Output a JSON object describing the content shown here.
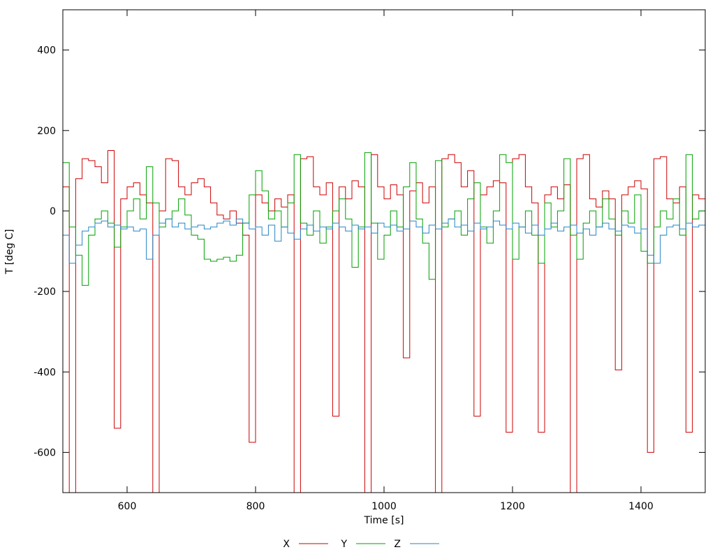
{
  "figure": {
    "background": "#ffffff"
  },
  "chart_data": {
    "type": "line",
    "interpolation": "step-after",
    "title": "",
    "xlabel": "Time [s]",
    "ylabel": "T [deg C]",
    "xlim": [
      500,
      1500
    ],
    "ylim": [
      -700,
      500
    ],
    "xticks": [
      600,
      800,
      1000,
      1200,
      1400
    ],
    "yticks": [
      -600,
      -400,
      -200,
      0,
      200,
      400
    ],
    "grid": false,
    "legend_position": "bottom-center",
    "x": [
      500,
      510,
      520,
      530,
      540,
      550,
      560,
      570,
      580,
      590,
      600,
      610,
      620,
      630,
      640,
      650,
      660,
      670,
      680,
      690,
      700,
      710,
      720,
      730,
      740,
      750,
      760,
      770,
      780,
      790,
      800,
      810,
      820,
      830,
      840,
      850,
      860,
      870,
      880,
      890,
      900,
      910,
      920,
      930,
      940,
      950,
      960,
      970,
      980,
      990,
      1000,
      1010,
      1020,
      1030,
      1040,
      1050,
      1060,
      1070,
      1080,
      1090,
      1100,
      1110,
      1120,
      1130,
      1140,
      1150,
      1160,
      1170,
      1180,
      1190,
      1200,
      1210,
      1220,
      1230,
      1240,
      1250,
      1260,
      1270,
      1280,
      1290,
      1300,
      1310,
      1320,
      1330,
      1340,
      1350,
      1360,
      1370,
      1380,
      1390,
      1400,
      1410,
      1420,
      1430,
      1440,
      1450,
      1460,
      1470,
      1480,
      1490,
      1500
    ],
    "series": [
      {
        "name": "X",
        "color": "#cc0000",
        "values": [
          60,
          -700,
          80,
          130,
          125,
          110,
          70,
          150,
          -540,
          30,
          60,
          70,
          40,
          20,
          -700,
          0,
          130,
          125,
          60,
          40,
          70,
          80,
          60,
          20,
          -10,
          -20,
          0,
          -30,
          -60,
          -575,
          40,
          20,
          0,
          30,
          10,
          40,
          -700,
          130,
          135,
          60,
          40,
          70,
          -510,
          60,
          30,
          75,
          60,
          -700,
          140,
          60,
          30,
          65,
          40,
          -365,
          50,
          70,
          20,
          60,
          -700,
          130,
          140,
          120,
          60,
          100,
          -510,
          40,
          60,
          75,
          70,
          -550,
          130,
          140,
          60,
          20,
          -550,
          40,
          60,
          30,
          65,
          -700,
          130,
          140,
          30,
          10,
          50,
          30,
          -395,
          40,
          60,
          75,
          55,
          -600,
          130,
          135,
          30,
          20,
          60,
          -550,
          40,
          30,
          65
        ]
      },
      {
        "name": "Y",
        "color": "#00a000",
        "values": [
          120,
          -40,
          -110,
          -185,
          -60,
          -20,
          0,
          -30,
          -90,
          -40,
          0,
          30,
          -20,
          110,
          20,
          -40,
          -20,
          0,
          30,
          -10,
          -60,
          -70,
          -120,
          -125,
          -120,
          -115,
          -125,
          -110,
          -30,
          40,
          100,
          50,
          -20,
          0,
          -40,
          20,
          140,
          -30,
          -60,
          0,
          -80,
          -40,
          0,
          30,
          -20,
          -140,
          -40,
          145,
          -30,
          -120,
          -60,
          0,
          -40,
          60,
          120,
          -20,
          -80,
          -170,
          125,
          -40,
          -20,
          0,
          -60,
          30,
          70,
          -40,
          -80,
          0,
          140,
          120,
          -120,
          -40,
          0,
          -60,
          -130,
          20,
          -40,
          0,
          130,
          -60,
          -120,
          -30,
          0,
          -40,
          30,
          -20,
          -60,
          0,
          -30,
          40,
          -100,
          -130,
          -40,
          0,
          -20,
          30,
          -60,
          140,
          -20,
          0,
          -30
        ]
      },
      {
        "name": "Z",
        "color": "#2585c7",
        "values": [
          -60,
          -130,
          -85,
          -50,
          -40,
          -30,
          -25,
          -40,
          -35,
          -45,
          -40,
          -50,
          -45,
          -120,
          -60,
          -30,
          -20,
          -40,
          -30,
          -45,
          -40,
          -35,
          -45,
          -40,
          -30,
          -25,
          -35,
          -20,
          -30,
          -45,
          -40,
          -60,
          -35,
          -75,
          -40,
          -55,
          -70,
          -45,
          -35,
          -50,
          -40,
          -45,
          -30,
          -40,
          -50,
          -35,
          -45,
          -40,
          -55,
          -30,
          -40,
          -35,
          -50,
          -45,
          -25,
          -40,
          -55,
          -35,
          -45,
          -30,
          -20,
          -40,
          -35,
          -50,
          -30,
          -45,
          -40,
          -25,
          -35,
          -45,
          -30,
          -40,
          -55,
          -35,
          -60,
          -45,
          -30,
          -50,
          -40,
          -35,
          -55,
          -45,
          -60,
          -40,
          -30,
          -45,
          -50,
          -35,
          -40,
          -55,
          -45,
          -110,
          -130,
          -60,
          -40,
          -35,
          -45,
          -30,
          -40,
          -35,
          -30
        ]
      }
    ]
  }
}
